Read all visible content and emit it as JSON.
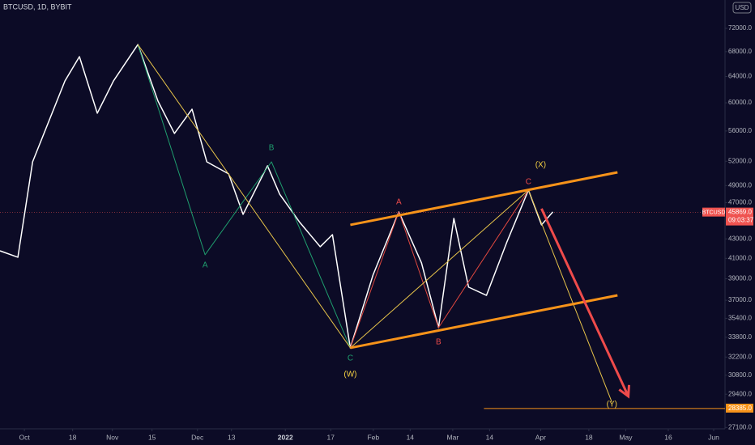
{
  "chart_data": {
    "type": "line",
    "title": "BTCUSD, 1D, BYBIT",
    "currency": "USD",
    "symbol": "BTCUSD",
    "countdown": "09:03:37",
    "log_scale": true,
    "grid": false,
    "background": "#0c0b26",
    "xlim": [
      -8.6,
      247
    ],
    "ylim": [
      27010,
      77170
    ],
    "xticks": [
      {
        "value": 0,
        "label": "Oct"
      },
      {
        "value": 17,
        "label": "18"
      },
      {
        "value": 31,
        "label": "Nov"
      },
      {
        "value": 45,
        "label": "15"
      },
      {
        "value": 61,
        "label": "Dec"
      },
      {
        "value": 73,
        "label": "13"
      },
      {
        "value": 92,
        "label": "2022"
      },
      {
        "value": 108,
        "label": "17"
      },
      {
        "value": 123,
        "label": "Feb"
      },
      {
        "value": 136,
        "label": "14"
      },
      {
        "value": 151,
        "label": "Mar"
      },
      {
        "value": 164,
        "label": "14"
      },
      {
        "value": 182,
        "label": "Apr"
      },
      {
        "value": 199,
        "label": "18"
      },
      {
        "value": 212,
        "label": "May"
      },
      {
        "value": 227,
        "label": "16"
      },
      {
        "value": 243,
        "label": "Jun"
      }
    ],
    "yticks": [
      {
        "value": 72000,
        "label": "72000.0"
      },
      {
        "value": 68000,
        "label": "68000.0"
      },
      {
        "value": 64000,
        "label": "64000.0"
      },
      {
        "value": 60000,
        "label": "60000.0"
      },
      {
        "value": 56000,
        "label": "56000.0"
      },
      {
        "value": 52000,
        "label": "52000.0"
      },
      {
        "value": 49000,
        "label": "49000.0"
      },
      {
        "value": 47000,
        "label": "47000.0"
      },
      {
        "value": 43000,
        "label": "43000.0"
      },
      {
        "value": 41000,
        "label": "41000.0"
      },
      {
        "value": 39000,
        "label": "39000.0"
      },
      {
        "value": 37000,
        "label": "37000.0"
      },
      {
        "value": 35400,
        "label": "35400.0"
      },
      {
        "value": 33800,
        "label": "33800.0"
      },
      {
        "value": 32200,
        "label": "32200.0"
      },
      {
        "value": 30800,
        "label": "30800.0"
      },
      {
        "value": 29400,
        "label": "29400.0"
      },
      {
        "value": 27100,
        "label": "27100.0"
      }
    ],
    "series": [
      {
        "color": "#ffffff",
        "width": 1.5,
        "x": [
          -8.6,
          -2.3,
          2.9,
          14.3,
          19.4,
          25.7,
          31.4,
          40,
          47.1,
          52.9,
          59.1,
          64.3,
          72,
          77.1,
          85.7,
          90,
          97.1,
          104.3,
          108.6,
          114.9,
          122.9,
          132,
          140,
          146,
          151.4,
          156.6,
          162.9,
          170,
          177.7,
          182.3,
          186.3
        ],
        "values": [
          41760,
          41110,
          51930,
          63300,
          67180,
          58490,
          63300,
          69200,
          60250,
          55660,
          59070,
          51930,
          50420,
          45660,
          51420,
          47970,
          44770,
          42180,
          43450,
          32930,
          39360,
          45940,
          40540,
          34600,
          45210,
          38210,
          37450,
          42600,
          48460,
          44500,
          45940
        ]
      },
      {
        "color": "#1f9e6e",
        "width": 1,
        "x": [
          40,
          63.7,
          87.1,
          114.9
        ],
        "values": [
          69200,
          41360,
          51930,
          32930
        ]
      },
      {
        "color": "#e0483f",
        "width": 1,
        "x": [
          114.9,
          132,
          146,
          177.7
        ],
        "values": [
          32930,
          45940,
          34600,
          48460
        ]
      },
      {
        "color": "#e6c34a",
        "width": 1,
        "x": [
          40,
          114.9,
          177.7,
          207.1
        ],
        "values": [
          69200,
          32930,
          48460,
          28840
        ]
      },
      {
        "color": "#f7931a",
        "width": 3,
        "x": [
          114.9,
          209.1
        ],
        "values": [
          44500,
          50610
        ]
      },
      {
        "color": "#f7931a",
        "width": 3,
        "x": [
          114.9,
          209.1
        ],
        "values": [
          32930,
          37450
        ]
      },
      {
        "color": "#ef4b4b",
        "width": 3,
        "arrow": true,
        "x": [
          182.3,
          212.9
        ],
        "values": [
          46300,
          29250
        ]
      }
    ],
    "annotations": [
      {
        "text": "A",
        "color": "#1f9e6e",
        "x": 63.7,
        "y": 40300
      },
      {
        "text": "B",
        "color": "#1f9e6e",
        "x": 87.1,
        "y": 53700
      },
      {
        "text": "C",
        "color": "#1f9e6e",
        "x": 114.9,
        "y": 32100
      },
      {
        "text": "(W)",
        "color": "#f5d142",
        "x": 114.9,
        "y": 30850
      },
      {
        "text": "A",
        "color": "#ef4b4b",
        "x": 132,
        "y": 47040
      },
      {
        "text": "B",
        "color": "#ef4b4b",
        "x": 146,
        "y": 33390
      },
      {
        "text": "C",
        "color": "#ef4b4b",
        "x": 177.7,
        "y": 49430
      },
      {
        "text": "(X)",
        "color": "#f5d142",
        "x": 182,
        "y": 51520
      },
      {
        "text": "(Y)",
        "color": "#f5d142",
        "x": 207.1,
        "y": 28670
      }
    ],
    "price_lines": [
      {
        "value": 45869,
        "label": "45869.0",
        "color": "#ef5350",
        "dotted": true,
        "x_start": -8.6
      },
      {
        "value": 28385,
        "label": "28385.0",
        "color": "#f7931a",
        "dotted": false,
        "x_start": 162
      }
    ]
  }
}
